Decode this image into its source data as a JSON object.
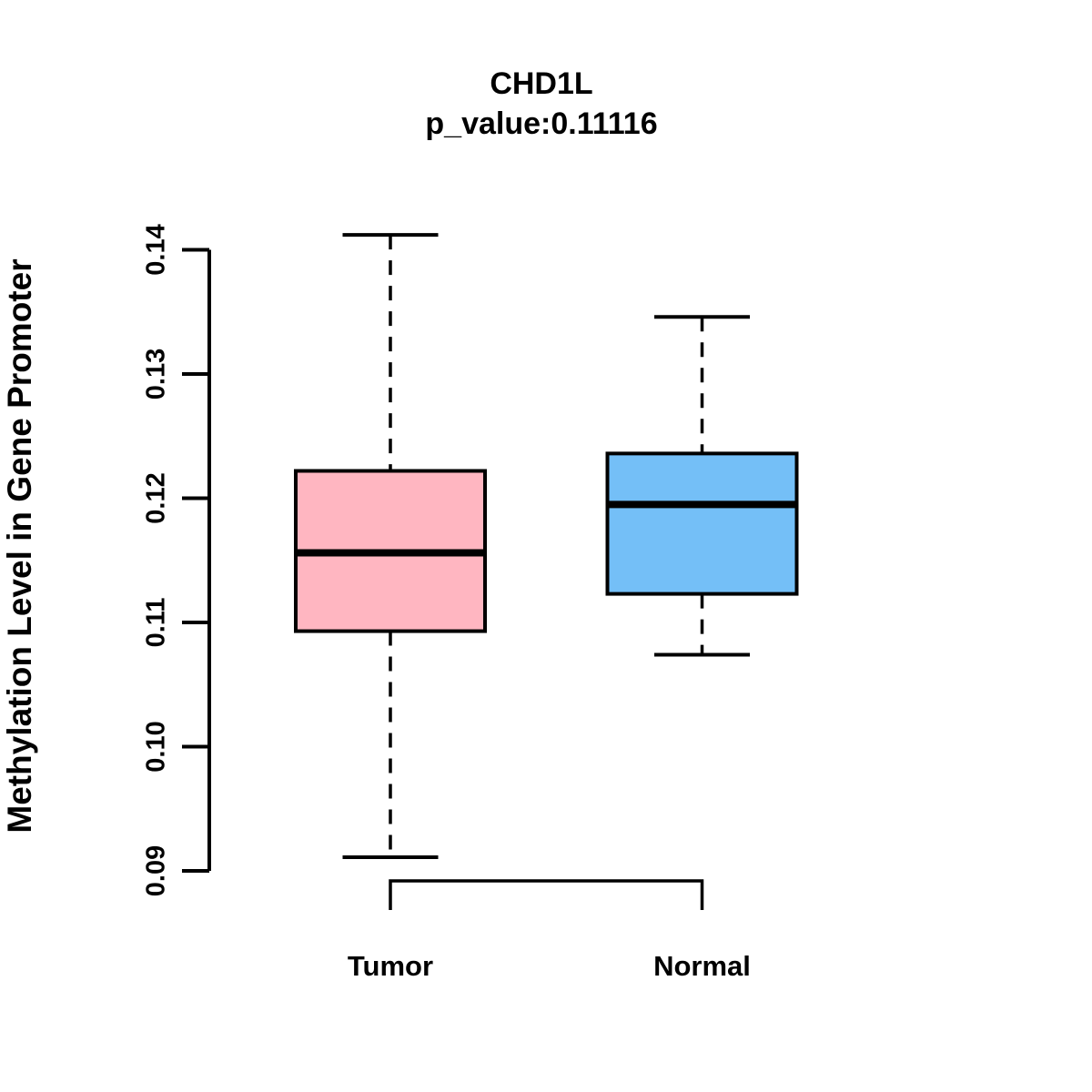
{
  "page": {
    "background_color": "#FFFFFF",
    "foreground_color": "#000000"
  },
  "chart_data": {
    "type": "boxplot",
    "title": "CHD1L",
    "subtitle": "p_value:0.11116",
    "xlabel": "",
    "ylabel": "Methylation Level in Gene Promoter",
    "ylim": [
      0.09,
      0.1412
    ],
    "yticks": [
      0.09,
      0.1,
      0.11,
      0.12,
      0.13,
      0.14
    ],
    "ytick_labels": [
      "0.09",
      "0.10",
      "0.11",
      "0.12",
      "0.13",
      "0.14"
    ],
    "categories": [
      "Tumor",
      "Normal"
    ],
    "grid": false,
    "legend_position": "none",
    "stroke_color": "#000000",
    "series": [
      {
        "name": "Tumor",
        "fill_color": "#FFB6C1",
        "whisker_low": 0.0911,
        "q1": 0.1093,
        "median": 0.1156,
        "q3": 0.1222,
        "whisker_high": 0.1412
      },
      {
        "name": "Normal",
        "fill_color": "#74BFF7",
        "whisker_low": 0.1074,
        "q1": 0.1123,
        "median": 0.1195,
        "q3": 0.1236,
        "whisker_high": 0.1346
      }
    ]
  }
}
